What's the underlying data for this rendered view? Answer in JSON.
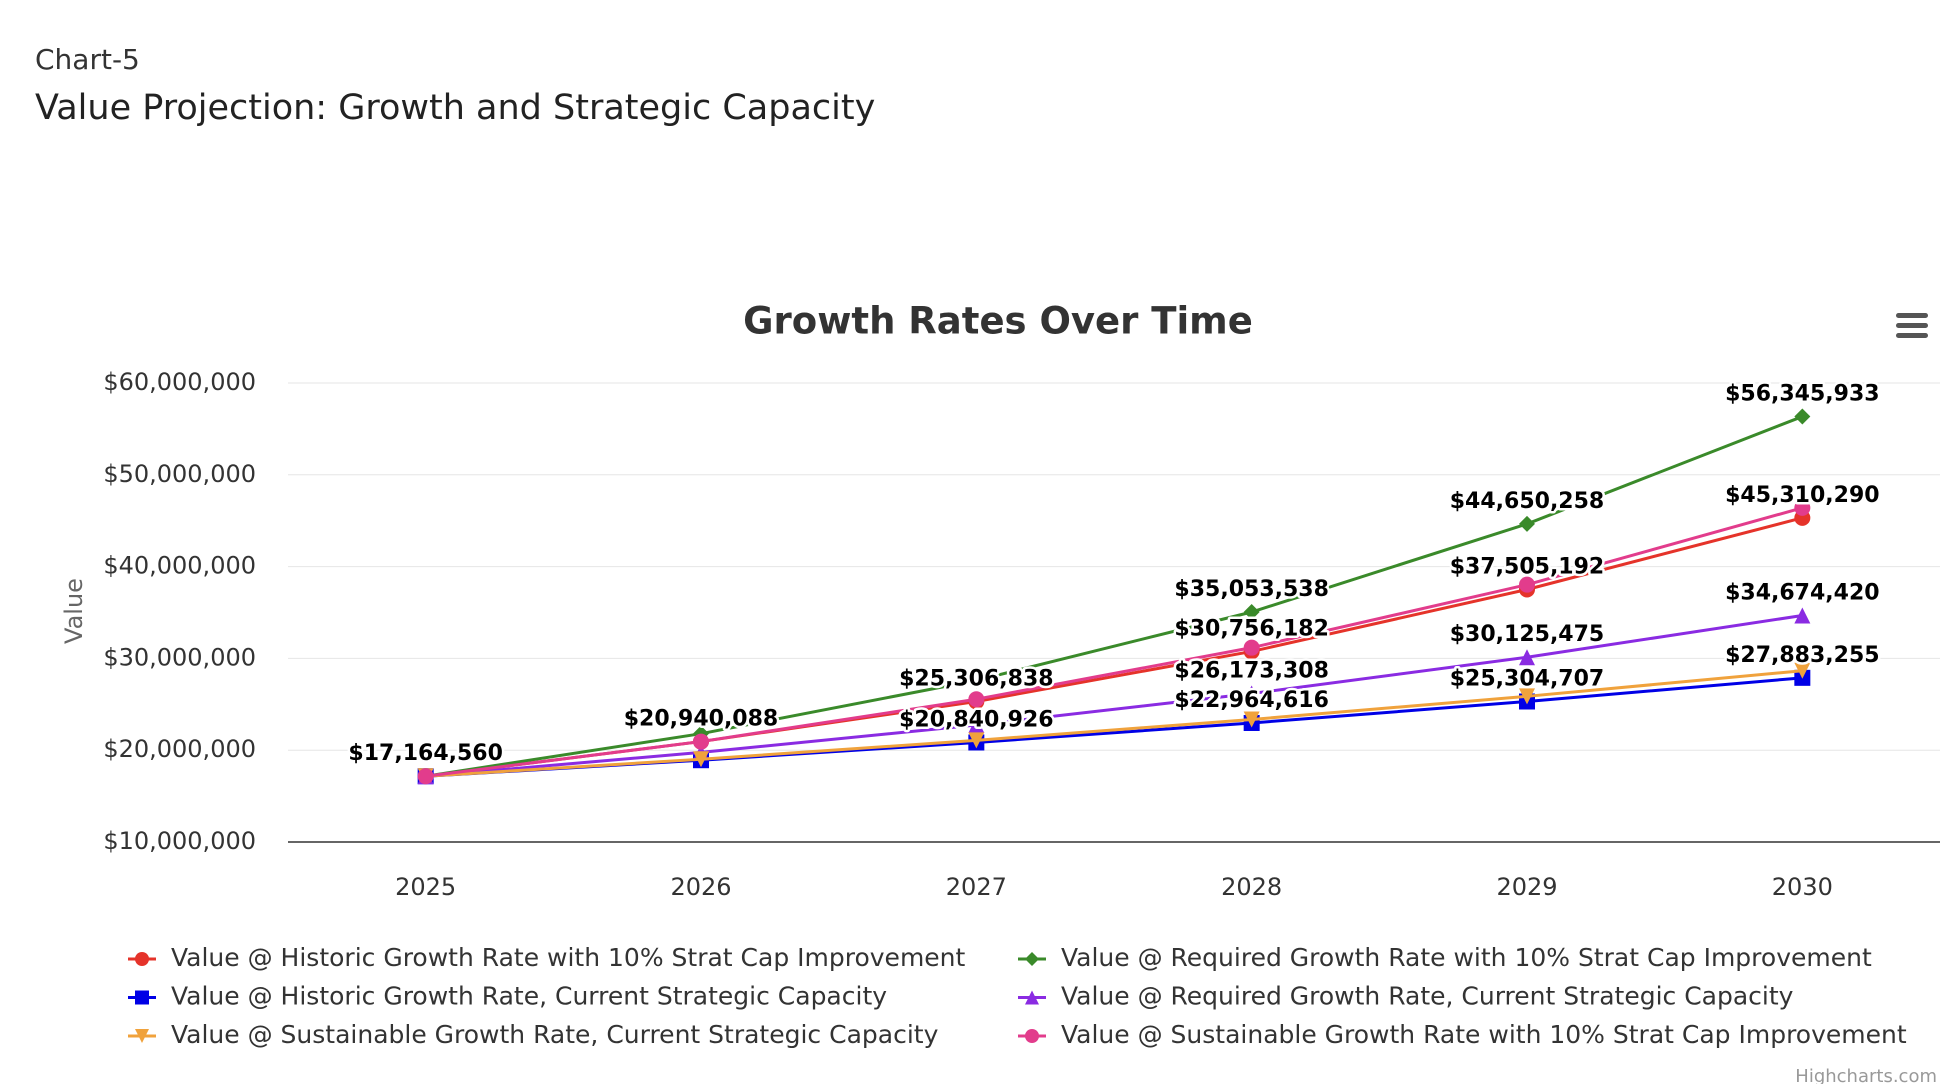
{
  "header": {
    "label": "Chart-5",
    "title": "Value Projection: Growth and Strategic Capacity"
  },
  "chart_data": {
    "type": "line",
    "title": "Growth Rates Over Time",
    "y_label": "Value",
    "credits": "Highcharts.com",
    "categories": [
      "2025",
      "2026",
      "2027",
      "2028",
      "2029",
      "2030"
    ],
    "ylim": [
      10000000,
      60000000
    ],
    "yticks": [
      {
        "value": 10000000,
        "label": "$10,000,000"
      },
      {
        "value": 20000000,
        "label": "$20,000,000"
      },
      {
        "value": 30000000,
        "label": "$30,000,000"
      },
      {
        "value": 40000000,
        "label": "$40,000,000"
      },
      {
        "value": 50000000,
        "label": "$50,000,000"
      },
      {
        "value": 60000000,
        "label": "$60,000,000"
      }
    ],
    "grid": true,
    "series": [
      {
        "name": "Value @ Historic Growth Rate with 10% Strat Cap Improvement",
        "color": "#e5332a",
        "marker": "circle",
        "values": [
          17164560,
          20940088,
          25306838,
          30756182,
          37505192,
          45310290
        ],
        "value_labels": [
          "$17,164,560",
          "$20,940,088",
          "$25,306,838",
          "$30,756,182",
          "$37,505,192",
          "$45,310,290"
        ]
      },
      {
        "name": "Value @ Required Growth Rate with 10% Strat Cap Improvement",
        "color": "#3a8a2a",
        "marker": "diamond",
        "values": [
          17164560,
          21800000,
          27600000,
          35053538,
          44650258,
          56345933
        ],
        "value_labels": [
          null,
          null,
          null,
          "$35,053,538",
          "$44,650,258",
          "$56,345,933"
        ]
      },
      {
        "name": "Value @ Historic Growth Rate, Current Strategic Capacity",
        "color": "#0000e6",
        "marker": "square",
        "values": [
          17164560,
          18910000,
          20840926,
          22964616,
          25304707,
          27883255
        ],
        "value_labels": [
          null,
          null,
          "$20,840,926",
          "$22,964,616",
          "$25,304,707",
          "$27,883,255"
        ]
      },
      {
        "name": "Value @ Required Growth Rate, Current Strategic Capacity",
        "color": "#8a2be2",
        "marker": "triangle",
        "values": [
          17164560,
          19760000,
          22740000,
          26173308,
          30125475,
          34674420
        ],
        "value_labels": [
          null,
          null,
          null,
          "$26,173,308",
          "$30,125,475",
          "$34,674,420"
        ]
      },
      {
        "name": "Value @ Sustainable Growth Rate, Current Strategic Capacity",
        "color": "#f0a23c",
        "marker": "triangle-down",
        "values": [
          17164560,
          19020000,
          21070000,
          23350000,
          25870000,
          28660000
        ]
      },
      {
        "name": "Value @ Sustainable Growth Rate with 10% Strat Cap Improvement",
        "color": "#e23c8c",
        "marker": "circle",
        "values": [
          17164560,
          20940000,
          25550000,
          31170000,
          38030000,
          46400000
        ]
      }
    ]
  }
}
